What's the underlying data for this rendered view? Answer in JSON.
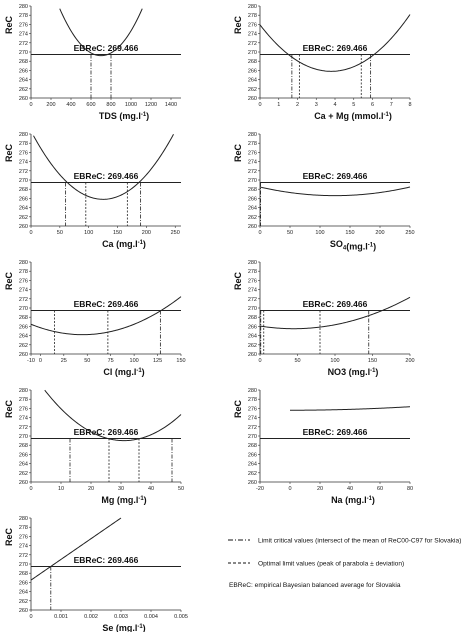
{
  "chart_data": [
    {
      "type": "line",
      "ylabel": "ReC",
      "xlabel": "TDS",
      "xunit": " (mg.l",
      "xunitsup": "-1",
      "xunitend": ")",
      "xticks": [
        "0",
        "200",
        "400",
        "600",
        "800",
        "1000",
        "1200",
        "1400"
      ],
      "yticks": [
        "260",
        "262",
        "264",
        "266",
        "268",
        "270",
        "272",
        "274",
        "276",
        "278",
        "280"
      ],
      "xlim": [
        0,
        1500
      ],
      "ylim": [
        260,
        280
      ],
      "curve": {
        "kind": "parabola",
        "x0": 700,
        "y0": 269.2,
        "a": 6e-05
      },
      "hline": 269.466,
      "hline_label": "EBReC: 269.466",
      "limit_critical": [
        600,
        800
      ],
      "optimal": [],
      "x_domain": [
        0,
        1500
      ]
    },
    {
      "type": "line",
      "ylabel": "ReC",
      "xlabel": "Ca + Mg",
      "xunit": " (mmol.l",
      "xunitsup": "-1",
      "xunitend": ")",
      "xticks": [
        "0",
        "1",
        "2",
        "3",
        "4",
        "5",
        "6",
        "7",
        "8"
      ],
      "yticks": [
        "260",
        "262",
        "264",
        "266",
        "268",
        "270",
        "272",
        "274",
        "276",
        "278",
        "280"
      ],
      "xlim": [
        0,
        8
      ],
      "ylim": [
        260,
        280
      ],
      "curve": {
        "kind": "parabola",
        "x0": 3.8,
        "y0": 265.8,
        "a": 0.7
      },
      "hline": 269.466,
      "hline_label": "EBReC: 269.466",
      "limit_critical": [
        1.7,
        5.9
      ],
      "optimal": [
        2.1,
        5.4
      ],
      "x_domain": [
        0,
        8
      ]
    },
    {
      "type": "line",
      "ylabel": "ReC",
      "xlabel": "Ca",
      "xunit": " (mg.l",
      "xunitsup": "-1",
      "xunitend": ")",
      "xticks": [
        "0",
        "50",
        "100",
        "150",
        "200",
        "250"
      ],
      "yticks": [
        "260",
        "262",
        "264",
        "266",
        "268",
        "270",
        "272",
        "274",
        "276",
        "278",
        "280"
      ],
      "xlim": [
        0,
        260
      ],
      "ylim": [
        260,
        280
      ],
      "curve": {
        "kind": "parabola",
        "x0": 125,
        "y0": 265.8,
        "a": 0.00095
      },
      "hline": 269.466,
      "hline_label": "EBReC: 269.466",
      "limit_critical": [
        60,
        190
      ],
      "optimal": [
        95,
        167
      ],
      "x_domain": [
        0,
        260
      ]
    },
    {
      "type": "line",
      "ylabel": "ReC",
      "xlabel": "SO",
      "xsub": "4",
      "xunit": "(mg.l",
      "xunitsup": "-1",
      "xunitend": ")",
      "xticks": [
        "0",
        "50",
        "100",
        "150",
        "200",
        "250"
      ],
      "yticks": [
        "260",
        "262",
        "264",
        "266",
        "268",
        "270",
        "272",
        "274",
        "276",
        "278",
        "280"
      ],
      "xlim": [
        0,
        250
      ],
      "ylim": [
        260,
        280
      ],
      "curve": {
        "kind": "parabola",
        "x0": 125,
        "y0": 266.6,
        "a": 0.00012
      },
      "hline": 269.466,
      "hline_label": "EBReC: 269.466",
      "limit_critical": [
        1
      ],
      "optimal": [],
      "x_domain": [
        0,
        250
      ]
    },
    {
      "type": "line",
      "ylabel": "ReC",
      "xlabel": "Cl",
      "xunit": " (mg.l",
      "xunitsup": "-1",
      "xunitend": ")",
      "xticks": [
        "-10",
        "0",
        "25",
        "50",
        "75",
        "100",
        "125",
        "150"
      ],
      "ytick_values": [
        260,
        262,
        264,
        266,
        268,
        270,
        272,
        274,
        276,
        278,
        280
      ],
      "yticks": [
        "260",
        "262",
        "264",
        "266",
        "268",
        "270",
        "272",
        "274",
        "276",
        "278",
        "280"
      ],
      "xtick_values": [
        -10,
        0,
        25,
        50,
        75,
        100,
        125,
        150
      ],
      "xlim": [
        -10,
        150
      ],
      "ylim": [
        260,
        280
      ],
      "curve": {
        "kind": "parabola",
        "x0": 45,
        "y0": 264.2,
        "a": 0.00075
      },
      "hline": 269.466,
      "hline_label": "EBReC: 269.466",
      "limit_critical": [
        128
      ],
      "optimal": [
        15,
        72
      ],
      "x_domain": [
        -10,
        150
      ]
    },
    {
      "type": "line",
      "ylabel": "ReC",
      "xlabel": "NO3",
      "xunit": " (mg.l",
      "xunitsup": "-1",
      "xunitend": ")",
      "xticks": [
        "0",
        "50",
        "100",
        "150",
        "200"
      ],
      "yticks": [
        "260",
        "262",
        "264",
        "266",
        "268",
        "270",
        "272",
        "274",
        "276",
        "278",
        "280"
      ],
      "xlim": [
        0,
        200
      ],
      "ylim": [
        260,
        280
      ],
      "curve": {
        "kind": "parabola",
        "x0": 45,
        "y0": 265.5,
        "a": 0.000284
      },
      "hline": 269.466,
      "hline_label": "EBReC: 269.466",
      "limit_critical": [
        1,
        145
      ],
      "optimal": [
        5,
        80
      ],
      "x_domain": [
        0,
        200
      ]
    },
    {
      "type": "line",
      "ylabel": "ReC",
      "xlabel": "Mg",
      "xunit": " (mg.l",
      "xunitsup": "-1",
      "xunitend": ")",
      "xticks": [
        "0",
        "10",
        "20",
        "30",
        "40",
        "50"
      ],
      "yticks": [
        "260",
        "262",
        "264",
        "266",
        "268",
        "270",
        "272",
        "274",
        "276",
        "278",
        "280"
      ],
      "xlim": [
        0,
        50
      ],
      "ylim": [
        260,
        280
      ],
      "curve": {
        "kind": "parabola",
        "x0": 31,
        "y0": 269.0,
        "a": 0.0157
      },
      "hline": 269.466,
      "hline_label": "EBReC: 269.466",
      "limit_critical": [
        13,
        47
      ],
      "optimal": [
        26,
        36
      ],
      "x_domain": [
        0,
        50
      ]
    },
    {
      "type": "line",
      "ylabel": "ReC",
      "xlabel": "Na",
      "xunit": " (mg.l",
      "xunitsup": "-1",
      "xunitend": ")",
      "xticks": [
        "-20",
        "0",
        "20",
        "40",
        "60",
        "80"
      ],
      "yticks": [
        "260",
        "262",
        "264",
        "266",
        "268",
        "270",
        "272",
        "274",
        "276",
        "278",
        "280"
      ],
      "xlim": [
        -20,
        80
      ],
      "ylim": [
        260,
        280
      ],
      "curve": {
        "kind": "parabola",
        "x0": 0,
        "y0": 275.6,
        "a": 0.00012
      },
      "hline": 269.466,
      "hline_label": "EBReC: 269.466",
      "limit_critical": [],
      "optimal": [],
      "x_domain": [
        0,
        80
      ]
    },
    {
      "type": "line",
      "ylabel": "ReC",
      "xlabel": "Se",
      "xunit": " (mg.l",
      "xunitsup": "-1",
      "xunitend": ")",
      "xticks": [
        "0",
        "0.001",
        "0.002",
        "0.003",
        "0.004",
        "0.005"
      ],
      "yticks": [
        "260",
        "262",
        "264",
        "266",
        "268",
        "270",
        "272",
        "274",
        "276",
        "278",
        "280"
      ],
      "xlim": [
        0,
        0.005
      ],
      "ylim": [
        260,
        280
      ],
      "curve": {
        "kind": "linear",
        "m": 4500,
        "b": 266.5
      },
      "hline": 269.466,
      "hline_label": "EBReC: 269.466",
      "limit_critical": [
        0.00066
      ],
      "optimal": [],
      "x_domain": [
        0,
        0.003
      ]
    }
  ],
  "legend": {
    "limit": "Limit critical values (intersect of the mean of ReC00-C97 for Slovakia)",
    "optimal": "Optimal limit values (peak of parabola ± deviation)",
    "ebrec": "EBReC: empirical Bayesian balanced average for Slovakia"
  }
}
